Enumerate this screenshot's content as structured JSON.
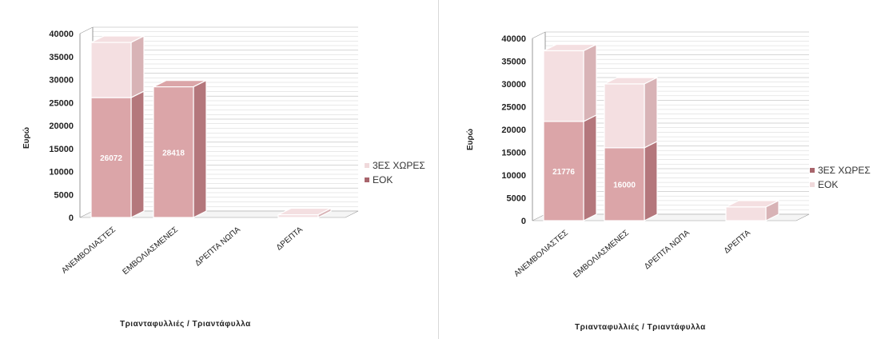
{
  "colors": {
    "eok": "#dba5a8",
    "eok_side": "#b4777c",
    "third": "#f4dfe1",
    "third_side": "#d8b3b6",
    "grid": "#c8c8c8",
    "axis": "#999999",
    "legend_swatch_a": "#d8aeb2",
    "legend_swatch_b": "#a8656c"
  },
  "chart_data": [
    {
      "type": "bar",
      "stacked": true,
      "title": "",
      "xlabel": "Τριανταφυλλιές / Τριαντάφυλλα",
      "ylabel": "Ευρώ",
      "ylim": [
        0,
        40000
      ],
      "yticks": [
        0,
        5000,
        10000,
        15000,
        20000,
        25000,
        30000,
        35000,
        40000
      ],
      "categories": [
        "ΑΝΕΜΒΟΛΙΑΣΤΕΣ",
        "ΕΜΒΟΛΙΑΣΜΕΝΕΣ",
        "ΔΡΕΠΤΑ ΝΩΠΑ",
        "ΔΡΕΠΤΑ"
      ],
      "series": [
        {
          "name": "ΕΟΚ",
          "values": [
            26072,
            28418,
            0,
            0
          ],
          "data_labels": [
            "26072",
            "28418",
            "",
            ""
          ]
        },
        {
          "name": "3ΕΣ ΧΩΡΕΣ",
          "values": [
            12000,
            0,
            0,
            600
          ],
          "data_labels": [
            "",
            "",
            "",
            ""
          ]
        }
      ],
      "legend": [
        "3ΕΣ ΧΩΡΕΣ",
        "ΕΟΚ"
      ],
      "legend_position": "right",
      "grid": true
    },
    {
      "type": "bar",
      "stacked": true,
      "title": "",
      "xlabel": "Τριανταφυλλιές / Τριαντάφυλλα",
      "ylabel": "Ευρώ",
      "ylim": [
        0,
        40000
      ],
      "yticks": [
        0,
        5000,
        10000,
        15000,
        20000,
        25000,
        30000,
        35000,
        40000
      ],
      "categories": [
        "ΑΝΕΜΒΟΛΙΑΣΤΕΣ",
        "ΕΜΒΟΛΙΑΣΜΕΝΕΣ",
        "ΔΡΕΠΤΑ ΝΩΠΑ",
        "ΔΡΕΠΤΑ"
      ],
      "series": [
        {
          "name": "ΕΟΚ",
          "values": [
            21776,
            16000,
            0,
            0
          ],
          "data_labels": [
            "21776",
            "16000",
            "",
            ""
          ]
        },
        {
          "name": "3ΕΣ ΧΩΡΕΣ",
          "values": [
            15500,
            14000,
            0,
            3000
          ],
          "data_labels": [
            "",
            "",
            "",
            ""
          ]
        }
      ],
      "legend": [
        "3ΕΣ ΧΩΡΕΣ",
        "ΕΟΚ"
      ],
      "legend_position": "right",
      "grid": true
    }
  ]
}
